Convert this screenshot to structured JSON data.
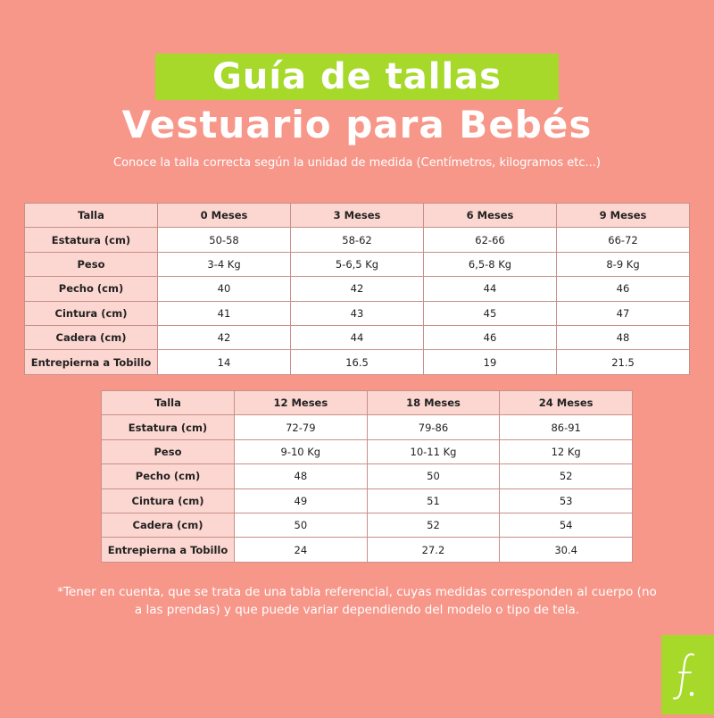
{
  "header": {
    "title_line1": "Guía de tallas",
    "title_line2": "Vestuario para Bebés",
    "subtitle": "Conoce la talla correcta según la unidad de medida (Centímetros, kilogramos etc...)"
  },
  "table1": {
    "header": [
      "Talla",
      "0 Meses",
      "3 Meses",
      "6 Meses",
      "9 Meses"
    ],
    "rows": [
      {
        "label": "Estatura (cm)",
        "values": [
          "50-58",
          "58-62",
          "62-66",
          "66-72"
        ]
      },
      {
        "label": "Peso",
        "values": [
          "3-4 Kg",
          "5-6,5 Kg",
          "6,5-8 Kg",
          "8-9 Kg"
        ]
      },
      {
        "label": "Pecho (cm)",
        "values": [
          "40",
          "42",
          "44",
          "46"
        ]
      },
      {
        "label": "Cintura (cm)",
        "values": [
          "41",
          "43",
          "45",
          "47"
        ]
      },
      {
        "label": "Cadera (cm)",
        "values": [
          "42",
          "44",
          "46",
          "48"
        ]
      },
      {
        "label": "Entrepierna a Tobillo",
        "values": [
          "14",
          "16.5",
          "19",
          "21.5"
        ]
      }
    ]
  },
  "table2": {
    "header": [
      "Talla",
      "12 Meses",
      "18 Meses",
      "24 Meses"
    ],
    "rows": [
      {
        "label": "Estatura (cm)",
        "values": [
          "72-79",
          "79-86",
          "86-91"
        ]
      },
      {
        "label": "Peso",
        "values": [
          "9-10 Kg",
          "10-11 Kg",
          "12 Kg"
        ]
      },
      {
        "label": "Pecho (cm)",
        "values": [
          "48",
          "50",
          "52"
        ]
      },
      {
        "label": "Cintura (cm)",
        "values": [
          "49",
          "51",
          "53"
        ]
      },
      {
        "label": "Cadera (cm)",
        "values": [
          "50",
          "52",
          "54"
        ]
      },
      {
        "label": "Entrepierna a Tobillo",
        "values": [
          "24",
          "27.2",
          "30.4"
        ]
      }
    ]
  },
  "note": "*Tener en cuenta, que se trata de una tabla referencial, cuyas medidas corresponden al cuerpo (no a las prendas) y que puede variar dependiendo del modelo o tipo de tela.",
  "logo": {
    "glyph": "f.",
    "icon": "brand-logo-icon"
  },
  "colors": {
    "background": "#f7978a",
    "accent_green": "#a6d92a",
    "header_cell": "#fcd6d0",
    "text_white": "#ffffff"
  }
}
